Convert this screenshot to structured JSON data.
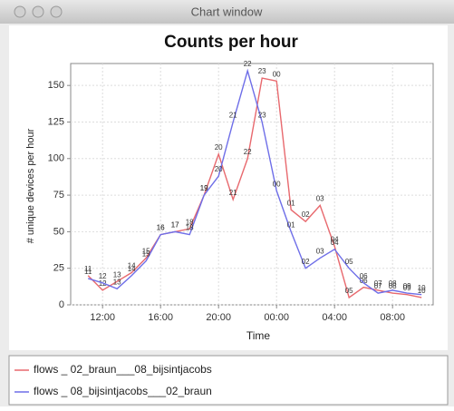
{
  "window": {
    "title": "Chart window"
  },
  "chart_data": {
    "type": "line",
    "title": "Counts per hour",
    "xlabel": "Time",
    "ylabel": "# unique devices per hour",
    "x": [
      11,
      12,
      13,
      14,
      15,
      16,
      17,
      18,
      19,
      20,
      21,
      22,
      23,
      24,
      25,
      26,
      27,
      28,
      29,
      30,
      31,
      32,
      33,
      34
    ],
    "point_labels": [
      "11",
      "12",
      "13",
      "14",
      "15",
      "16",
      "17",
      "18",
      "19",
      "20",
      "21",
      "22",
      "23",
      "00",
      "01",
      "02",
      "03",
      "04",
      "05",
      "06",
      "07",
      "08",
      "09",
      "10"
    ],
    "series": [
      {
        "name": "flows _ 02_braun___08_bijsintjacobs",
        "color": "#e8696e",
        "values": [
          20,
          10,
          16,
          22,
          32,
          48,
          50,
          52,
          75,
          103,
          72,
          100,
          155,
          153,
          65,
          57,
          68,
          40,
          5,
          12,
          10,
          8,
          7,
          5
        ]
      },
      {
        "name": "flows _ 08_bijsintjacobs___02_braun",
        "color": "#6e6ee8",
        "values": [
          18,
          15,
          11,
          20,
          30,
          48,
          50,
          48,
          75,
          88,
          125,
          160,
          125,
          78,
          50,
          25,
          32,
          38,
          25,
          15,
          8,
          10,
          8,
          7
        ]
      }
    ],
    "xlim": [
      9.8,
      34.8
    ],
    "xticks": [
      {
        "value": 12,
        "label": "12:00"
      },
      {
        "value": 16,
        "label": "16:00"
      },
      {
        "value": 20,
        "label": "20:00"
      },
      {
        "value": 24,
        "label": "00:00"
      },
      {
        "value": 28,
        "label": "04:00"
      },
      {
        "value": 32,
        "label": "08:00"
      }
    ],
    "ylim": [
      0,
      165
    ],
    "yticks": [
      0,
      25,
      50,
      75,
      100,
      125,
      150
    ],
    "grid": true,
    "legend": "bottom"
  }
}
